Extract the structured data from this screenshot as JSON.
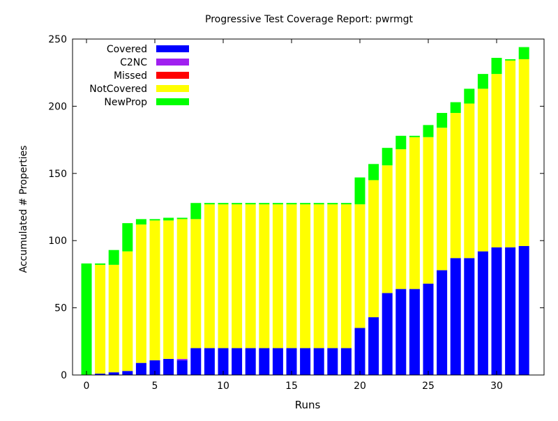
{
  "chart_data": {
    "type": "bar",
    "stacked": true,
    "title": "Progressive Test Coverage Report: pwrmgt",
    "xlabel": "Runs",
    "ylabel": "Accumulated # Properties",
    "ylim": [
      0,
      250
    ],
    "xlim": [
      -1,
      33
    ],
    "yticks": [
      0,
      50,
      100,
      150,
      200,
      250
    ],
    "xticks": [
      0,
      5,
      10,
      15,
      20,
      25,
      30
    ],
    "legend_position": "top-left",
    "x": [
      0,
      1,
      2,
      3,
      4,
      5,
      6,
      7,
      8,
      9,
      10,
      11,
      12,
      13,
      14,
      15,
      16,
      17,
      18,
      19,
      20,
      21,
      22,
      23,
      24,
      25,
      26,
      27,
      28,
      29,
      30,
      31,
      32
    ],
    "series": [
      {
        "name": "Covered",
        "color": "#0000ff",
        "values": [
          0,
          1,
          2,
          3,
          9,
          11,
          12,
          11,
          20,
          20,
          20,
          20,
          20,
          20,
          20,
          20,
          20,
          20,
          20,
          20,
          35,
          43,
          61,
          64,
          64,
          68,
          78,
          87,
          87,
          92,
          95,
          95,
          96
        ]
      },
      {
        "name": "C2NC",
        "color": "#a020f0",
        "values": [
          0,
          0,
          0,
          0,
          0,
          0,
          0,
          1,
          0,
          0,
          0,
          0,
          0,
          0,
          0,
          0,
          0,
          0,
          0,
          0,
          0,
          0,
          0,
          0,
          0,
          0,
          0,
          0,
          0,
          0,
          0,
          0,
          0
        ]
      },
      {
        "name": "Missed",
        "color": "#ff0000",
        "values": [
          0,
          0,
          0,
          0,
          0,
          0,
          0,
          0,
          0,
          0,
          0,
          0,
          0,
          0,
          0,
          0,
          0,
          0,
          0,
          0,
          0,
          0,
          0,
          0,
          0,
          0,
          0,
          0,
          0,
          0,
          0,
          0,
          0
        ]
      },
      {
        "name": "NotCovered",
        "color": "#ffff00",
        "values": [
          0,
          81,
          80,
          89,
          103,
          104,
          103,
          104,
          96,
          107,
          107,
          107,
          107,
          107,
          107,
          107,
          107,
          107,
          107,
          107,
          92,
          102,
          95,
          104,
          113,
          109,
          106,
          108,
          115,
          121,
          129,
          139,
          139
        ]
      },
      {
        "name": "NewProp",
        "color": "#00ff00",
        "values": [
          83,
          1,
          11,
          21,
          4,
          1,
          2,
          1,
          12,
          1,
          1,
          1,
          1,
          1,
          1,
          1,
          1,
          1,
          1,
          1,
          20,
          12,
          13,
          10,
          1,
          9,
          11,
          8,
          11,
          11,
          12,
          1,
          9
        ]
      }
    ]
  }
}
